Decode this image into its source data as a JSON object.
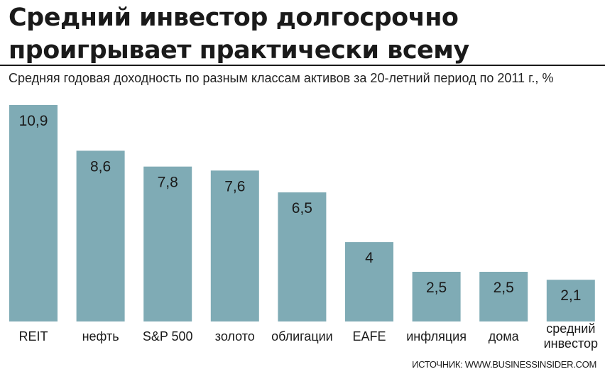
{
  "header": {
    "title_line1": "Средний инвестор долгосрочно",
    "title_line2": "проигрывает практически всему",
    "subtitle": "Средняя годовая доходность по разным классам активов за 20-летний период по 2011 г., %"
  },
  "chart_data": {
    "type": "bar",
    "title": "Средний инвестор долгосрочно проигрывает практически всему",
    "subtitle": "Средняя годовая доходность по разным классам активов за 20-летний период по 2011 г., %",
    "categories": [
      "REIT",
      "нефть",
      "S&P 500",
      "золото",
      "облигации",
      "EAFE",
      "инфляция",
      "дома",
      "средний инвестор"
    ],
    "category_lines": [
      [
        "REIT"
      ],
      [
        "нефть"
      ],
      [
        "S&P 500"
      ],
      [
        "золото"
      ],
      [
        "облигации"
      ],
      [
        "EAFE"
      ],
      [
        "инфляция"
      ],
      [
        "дома"
      ],
      [
        "средний",
        "инвестор"
      ]
    ],
    "values": [
      10.9,
      8.6,
      7.8,
      7.6,
      6.5,
      4,
      2.5,
      2.5,
      2.1
    ],
    "value_labels": [
      "10,9",
      "8,6",
      "7,8",
      "7,6",
      "6,5",
      "4",
      "2,5",
      "2,5",
      "2,1"
    ],
    "ylim": [
      0,
      10.9
    ],
    "grid": false,
    "legend": "none",
    "bar_color": "#7fabb5",
    "xlabel": "",
    "ylabel": ""
  },
  "footer": {
    "source": "ИСТОЧНИК: WWW.BUSINESSINSIDER.COM"
  }
}
